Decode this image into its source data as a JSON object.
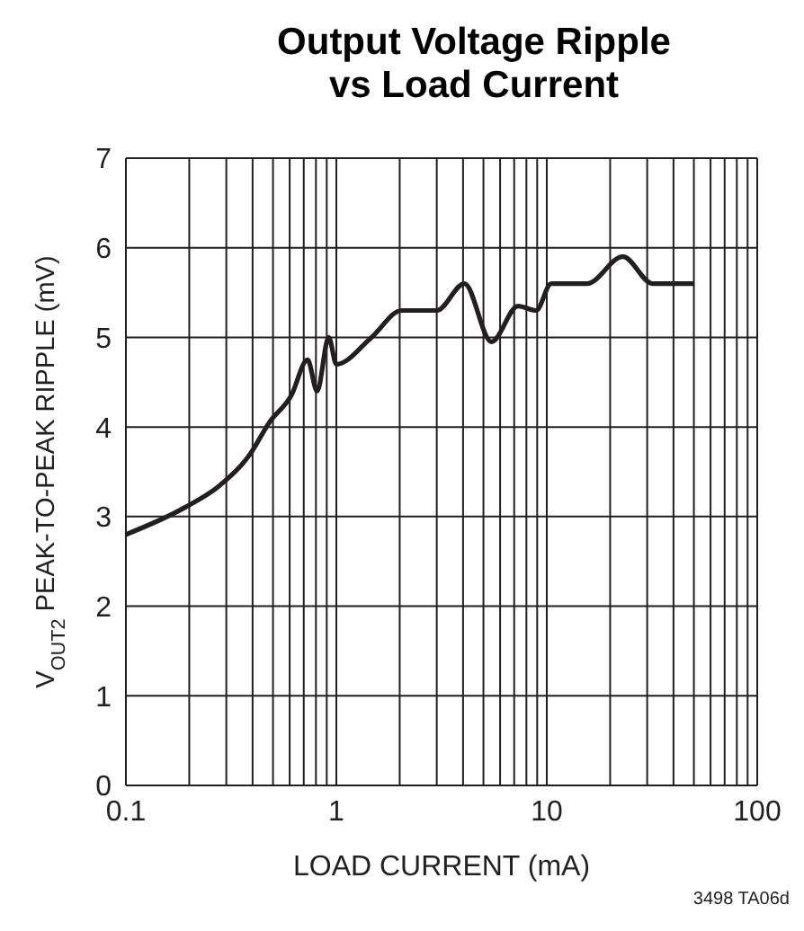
{
  "chart_data": {
    "type": "line",
    "title": "Output Voltage Ripple\nvs Load Current",
    "xlabel": "LOAD CURRENT (mA)",
    "ylabel": "V$_{OUT2}$ PEAK-TO-PEAK RIPPLE (mV)",
    "annotations": [
      "3498 TA06d"
    ],
    "log": "x",
    "grid": true,
    "marker": "none",
    "line_style": "solid",
    "xlim": [
      0.1,
      100
    ],
    "ylim": [
      0,
      7
    ],
    "xticks": [
      0.1,
      {
        "value": 0.2,
        "label": null
      },
      {
        "value": 0.3,
        "label": null
      },
      {
        "value": 0.4,
        "label": null
      },
      {
        "value": 0.5,
        "label": null
      },
      {
        "value": 0.6,
        "label": null
      },
      {
        "value": 0.7,
        "label": null
      },
      {
        "value": 0.8,
        "label": null
      },
      {
        "value": 0.9,
        "label": null
      },
      1,
      {
        "value": 2,
        "label": null
      },
      {
        "value": 3,
        "label": null
      },
      {
        "value": 4,
        "label": null
      },
      {
        "value": 5,
        "label": null
      },
      {
        "value": 6,
        "label": null
      },
      {
        "value": 7,
        "label": null
      },
      {
        "value": 8,
        "label": null
      },
      {
        "value": 9,
        "label": null
      },
      10,
      {
        "value": 20,
        "label": null
      },
      {
        "value": 30,
        "label": null
      },
      {
        "value": 40,
        "label": null
      },
      {
        "value": 50,
        "label": null
      },
      {
        "value": 60,
        "label": null
      },
      {
        "value": 70,
        "label": null
      },
      {
        "value": 80,
        "label": null
      },
      {
        "value": 90,
        "label": null
      },
      100
    ],
    "yticks": [
      0,
      1,
      2,
      3,
      4,
      5,
      6,
      7
    ],
    "series": [
      {
        "color": "#231f20",
        "x": [
          0.1,
          0.19,
          0.28,
          0.39,
          0.48,
          0.61,
          0.73,
          0.81,
          0.92,
          1.0,
          1.47,
          2.04,
          3.0,
          4.06,
          5.46,
          7.3,
          8.9,
          10.5,
          15.5,
          23,
          31.8,
          50
        ],
        "values": [
          2.8,
          3.1,
          3.35,
          3.7,
          4.05,
          4.35,
          4.75,
          4.4,
          5.0,
          4.7,
          5.0,
          5.3,
          5.3,
          5.6,
          4.95,
          5.35,
          5.3,
          5.6,
          5.6,
          5.9,
          5.6,
          5.6
        ]
      }
    ]
  }
}
